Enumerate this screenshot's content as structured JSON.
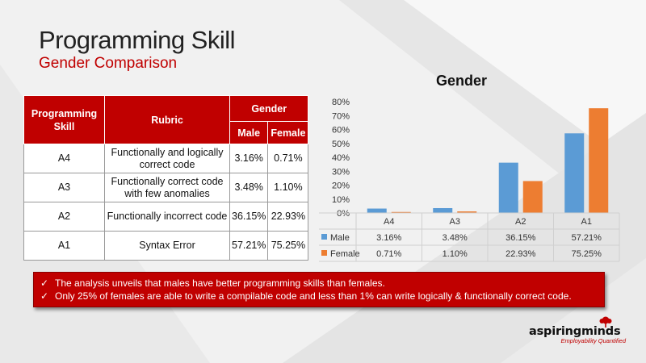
{
  "slide": {
    "title": "Programming Skill",
    "subtitle": "Gender Comparison"
  },
  "table": {
    "header_skill": "Programming Skill",
    "header_rubric": "Rubric",
    "header_gender": "Gender",
    "header_male": "Male",
    "header_female": "Female",
    "rows": [
      {
        "skill": "A4",
        "rubric": "Functionally and logically correct code",
        "male": "3.16%",
        "female": "0.71%"
      },
      {
        "skill": "A3",
        "rubric": "Functionally correct code with few anomalies",
        "male": "3.48%",
        "female": "1.10%"
      },
      {
        "skill": "A2",
        "rubric": "Functionally incorrect code",
        "male": "36.15%",
        "female": "22.93%"
      },
      {
        "skill": "A1",
        "rubric": "Syntax Error",
        "male": "57.21%",
        "female": "75.25%"
      }
    ]
  },
  "chart_data": {
    "type": "bar",
    "title": "Gender",
    "categories": [
      "A4",
      "A3",
      "A2",
      "A1"
    ],
    "series": [
      {
        "name": "Male",
        "values": [
          3.16,
          3.48,
          36.15,
          57.21
        ],
        "labels": [
          "3.16%",
          "3.48%",
          "36.15%",
          "57.21%"
        ],
        "color": "#5b9bd5"
      },
      {
        "name": "Female",
        "values": [
          0.71,
          1.1,
          22.93,
          75.25
        ],
        "labels": [
          "0.71%",
          "1.10%",
          "22.93%",
          "75.25%"
        ],
        "color": "#ed7d31"
      }
    ],
    "ylim": [
      0,
      80
    ],
    "yticks": [
      "0%",
      "10%",
      "20%",
      "30%",
      "40%",
      "50%",
      "60%",
      "70%",
      "80%"
    ],
    "grid": false,
    "legend": "data-table"
  },
  "notes": [
    "The analysis unveils that males have better programming skills than females.",
    "Only 25% of females are able to write a compilable code and less than 1% can write logically & functionally correct code."
  ],
  "brand": {
    "name": "aspiringminds",
    "tagline": "Employability Quantified",
    "accent": "#c00000"
  }
}
